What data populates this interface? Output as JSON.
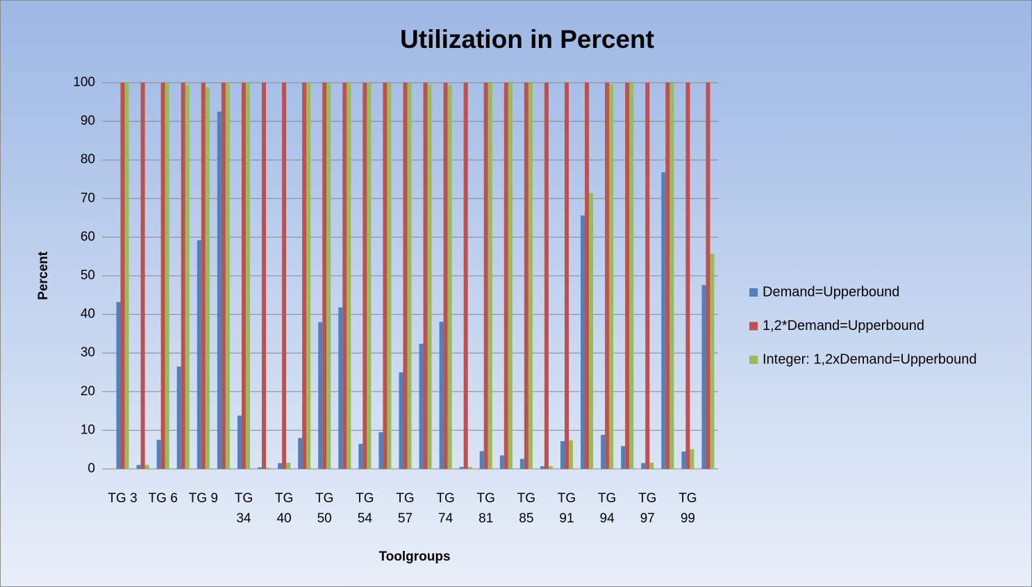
{
  "chart_data": {
    "type": "bar",
    "title": "Utilization in Percent",
    "x_label": "Toolgroups",
    "y_label": "Percent",
    "categories": [
      "TG 3",
      null,
      "TG 6",
      null,
      "TG 9",
      null,
      "TG 34",
      null,
      "TG 40",
      null,
      "TG 50",
      null,
      "TG 54",
      null,
      "TG 57",
      null,
      "TG 74",
      null,
      "TG 81",
      null,
      "TG 85",
      null,
      "TG 91",
      null,
      "TG 94",
      null,
      "TG 97",
      null,
      "TG 99",
      null
    ],
    "series": [
      {
        "name": "Demand=Upperbound",
        "color": "#4f81bd",
        "values": [
          43.2,
          1,
          7.5,
          26.5,
          59.2,
          92.5,
          13.8,
          0.4,
          1.5,
          8,
          38,
          41.8,
          6.5,
          9.5,
          25,
          32.4,
          38.1,
          0.5,
          4.6,
          3.5,
          2.6,
          0.7,
          7.2,
          65.6,
          8.8,
          5.9,
          1.5,
          76.8,
          4.5,
          47.6
        ]
      },
      {
        "name": "1,2*Demand=Upperbound",
        "color": "#c0504d",
        "values": [
          100,
          100,
          100,
          100,
          100,
          100,
          100,
          100,
          100,
          100,
          100,
          100,
          100,
          100,
          100,
          100,
          100,
          100,
          100,
          100,
          100,
          100,
          100,
          100,
          100,
          100,
          100,
          100,
          100,
          100
        ]
      },
      {
        "name": "Integer: 1,2xDemand=Upperbound",
        "color": "#9bbb59",
        "values": [
          100,
          1,
          100,
          99.5,
          98.8,
          99.7,
          99.8,
          0.3,
          1.6,
          99.8,
          99.8,
          99.8,
          99.8,
          99.8,
          99.8,
          99.6,
          99.4,
          0.5,
          99.9,
          99.9,
          99.9,
          0.7,
          7.4,
          71.4,
          99.6,
          99.9,
          1.6,
          99.9,
          5.1,
          55.7
        ]
      }
    ],
    "ylim": [
      0,
      100
    ],
    "yticks": [
      0,
      10,
      20,
      30,
      40,
      50,
      60,
      70,
      80,
      90,
      100
    ],
    "grid": true,
    "legend": "right"
  }
}
